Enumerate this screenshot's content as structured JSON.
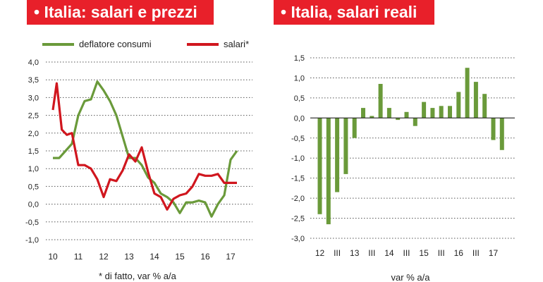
{
  "chart_data": [
    {
      "type": "line",
      "title": "• Italia: salari e prezzi",
      "note": "* di fatto, var % a/a",
      "ylim": [
        -1.0,
        4.0
      ],
      "yticks": [
        "4,0",
        "3,5",
        "3,0",
        "2,5",
        "2,0",
        "1,5",
        "1,0",
        "0,5",
        "0,0",
        "-0,5",
        "-1,0"
      ],
      "ytick_values": [
        4.0,
        3.5,
        3.0,
        2.5,
        2.0,
        1.5,
        1.0,
        0.5,
        0.0,
        -0.5,
        -1.0
      ],
      "xlim": [
        10,
        17.6
      ],
      "xticks": [
        "10",
        "11",
        "12",
        "13",
        "14",
        "15",
        "16",
        "17"
      ],
      "xtick_values": [
        10,
        11,
        12,
        13,
        14,
        15,
        16,
        17
      ],
      "grid": true,
      "legend": "top",
      "series": [
        {
          "name": "deflatore consumi",
          "color": "#6a9a3a",
          "x": [
            10.0,
            10.25,
            10.5,
            10.75,
            11.0,
            11.25,
            11.5,
            11.75,
            12.0,
            12.25,
            12.5,
            12.75,
            13.0,
            13.25,
            13.5,
            13.75,
            14.0,
            14.25,
            14.5,
            14.75,
            15.0,
            15.25,
            15.5,
            15.75,
            16.0,
            16.25,
            16.5,
            16.75,
            17.0,
            17.25
          ],
          "y": [
            1.3,
            1.3,
            1.5,
            1.7,
            2.5,
            2.9,
            2.95,
            3.45,
            3.2,
            2.9,
            2.5,
            1.9,
            1.3,
            1.3,
            1.1,
            0.75,
            0.6,
            0.3,
            0.2,
            0.05,
            -0.25,
            0.05,
            0.05,
            0.1,
            0.05,
            -0.35,
            0.0,
            0.25,
            1.25,
            1.5
          ]
        },
        {
          "name": "salari*",
          "color": "#d0161e",
          "x": [
            10.0,
            10.15,
            10.35,
            10.55,
            10.75,
            11.0,
            11.25,
            11.5,
            11.75,
            12.0,
            12.25,
            12.5,
            12.75,
            13.0,
            13.25,
            13.5,
            13.75,
            14.0,
            14.25,
            14.5,
            14.75,
            15.0,
            15.25,
            15.5,
            15.75,
            16.0,
            16.25,
            16.5,
            16.75,
            17.0,
            17.25
          ],
          "y": [
            2.65,
            3.4,
            2.1,
            1.95,
            2.0,
            1.1,
            1.1,
            1.0,
            0.7,
            0.2,
            0.7,
            0.65,
            0.95,
            1.4,
            1.2,
            1.6,
            0.9,
            0.3,
            0.2,
            -0.15,
            0.15,
            0.25,
            0.3,
            0.5,
            0.85,
            0.8,
            0.8,
            0.85,
            0.6,
            0.6,
            0.6
          ]
        }
      ]
    },
    {
      "type": "bar",
      "title": "• Italia, salari reali",
      "xlabel": "var % a/a",
      "ylim": [
        -3.0,
        1.5
      ],
      "yticks": [
        "1,5",
        "1,0",
        "0,5",
        "0,0",
        "-0,5",
        "-1,0",
        "-1,5",
        "-2,0",
        "-2,5",
        "-3,0"
      ],
      "ytick_values": [
        1.5,
        1.0,
        0.5,
        0.0,
        -0.5,
        -1.0,
        -1.5,
        -2.0,
        -2.5,
        -3.0
      ],
      "xtick_labels": [
        "12",
        "III",
        "13",
        "III",
        "14",
        "III",
        "15",
        "III",
        "16",
        "III",
        "17"
      ],
      "xtick_index": [
        0,
        2,
        4,
        6,
        8,
        10,
        12,
        14,
        16,
        18,
        20
      ],
      "grid": true,
      "series": [
        {
          "name": "",
          "color": "#6a9a3a",
          "values": [
            -2.4,
            -2.65,
            -1.85,
            -1.4,
            -0.5,
            0.25,
            0.05,
            0.85,
            0.25,
            -0.05,
            0.15,
            -0.2,
            0.4,
            0.25,
            0.3,
            0.3,
            0.65,
            1.25,
            0.9,
            0.6,
            -0.55,
            -0.8
          ]
        }
      ]
    }
  ]
}
